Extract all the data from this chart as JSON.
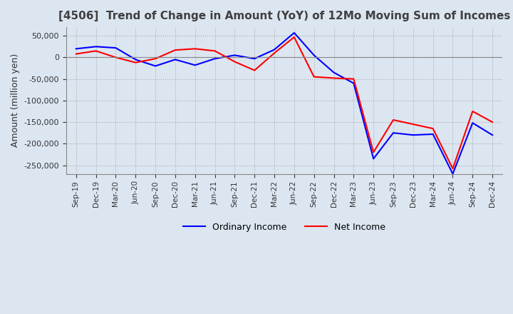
{
  "title": "[4506]  Trend of Change in Amount (YoY) of 12Mo Moving Sum of Incomes",
  "ylabel": "Amount (million yen)",
  "x_labels": [
    "Sep-19",
    "Dec-19",
    "Mar-20",
    "Jun-20",
    "Sep-20",
    "Dec-20",
    "Mar-21",
    "Jun-21",
    "Sep-21",
    "Dec-21",
    "Mar-22",
    "Jun-22",
    "Sep-22",
    "Dec-22",
    "Mar-23",
    "Jun-23",
    "Sep-23",
    "Dec-23",
    "Mar-24",
    "Jun-24",
    "Sep-24",
    "Dec-24"
  ],
  "ordinary_income": [
    20000,
    25000,
    22000,
    -5000,
    -20000,
    -5000,
    -18000,
    -3000,
    5000,
    -3000,
    18000,
    57000,
    5000,
    -35000,
    -60000,
    -235000,
    -175000,
    -180000,
    -178000,
    -270000,
    -152000,
    -180000
  ],
  "net_income": [
    8000,
    15000,
    0,
    -12000,
    -3000,
    17000,
    20000,
    15000,
    -10000,
    -30000,
    10000,
    47000,
    -45000,
    -48000,
    -50000,
    -220000,
    -145000,
    -155000,
    -165000,
    -258000,
    -125000,
    -150000
  ],
  "ordinary_color": "#0000ff",
  "net_color": "#ff0000",
  "ylim": [
    -270000,
    70000
  ],
  "yticks": [
    50000,
    0,
    -50000,
    -100000,
    -150000,
    -200000,
    -250000
  ],
  "background_color": "#dce6f1",
  "plot_bg_color": "#dce6f1",
  "grid_color": "#aaaaaa",
  "title_color": "#404040",
  "spine_color": "#888888"
}
